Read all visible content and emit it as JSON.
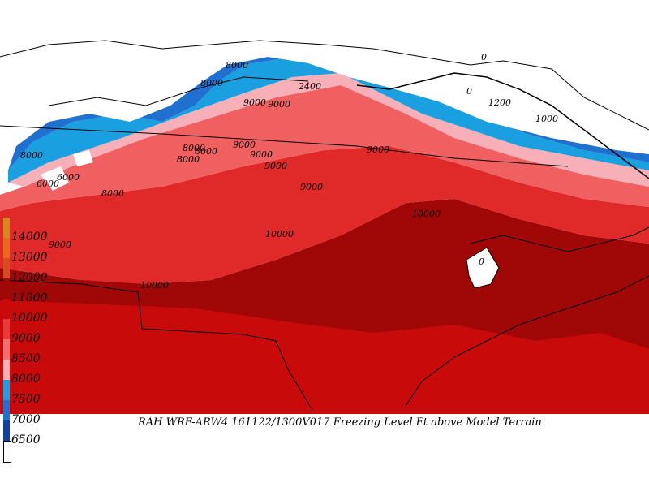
{
  "title": "RAH WRF-ARW4 161122/1300V017  Freezing Level Ft above Model Terrain",
  "legend": {
    "levels": [
      {
        "label": "14000",
        "color": "#d4881e"
      },
      {
        "label": "13000",
        "color": "#e8691a"
      },
      {
        "label": "12000",
        "color": "#d84a22"
      },
      {
        "label": "11000",
        "color": "#a00808"
      },
      {
        "label": "10000",
        "color": "#c80a0a"
      },
      {
        "label": "9000",
        "color": "#e83a3a"
      },
      {
        "label": "8500",
        "color": "#f07070"
      },
      {
        "label": "8000",
        "color": "#f7b0b8"
      },
      {
        "label": "7500",
        "color": "#1aa0e0"
      },
      {
        "label": "7000",
        "color": "#2070d0"
      },
      {
        "label": "6500",
        "color": "#1040a0"
      },
      {
        "label": "",
        "color": "#ffffff"
      }
    ]
  },
  "contour_labels": [
    {
      "text": "8000"
    },
    {
      "text": "8000"
    },
    {
      "text": "8000"
    },
    {
      "text": "8000"
    },
    {
      "text": "8000"
    },
    {
      "text": "8000"
    },
    {
      "text": "6000"
    },
    {
      "text": "6000"
    },
    {
      "text": "9000"
    },
    {
      "text": "9000"
    },
    {
      "text": "9000"
    },
    {
      "text": "9000"
    },
    {
      "text": "9000"
    },
    {
      "text": "9000"
    },
    {
      "text": "9000"
    },
    {
      "text": "10000"
    },
    {
      "text": "10000"
    },
    {
      "text": "10000"
    },
    {
      "text": "0"
    },
    {
      "text": "0"
    },
    {
      "text": "0"
    },
    {
      "text": "2400"
    },
    {
      "text": "1200"
    },
    {
      "text": "1000"
    },
    {
      "text": "8000"
    },
    {
      "text": "9000"
    }
  ],
  "colors": {
    "band_dark": "#a00808",
    "band_red": "#c80a0a",
    "band_mid": "#e02a2a",
    "band_salmon": "#f06060",
    "band_pink": "#f7b0b8",
    "band_lightblue": "#1aa0e0",
    "band_blue": "#2070d0",
    "band_navy": "#1040a0"
  }
}
